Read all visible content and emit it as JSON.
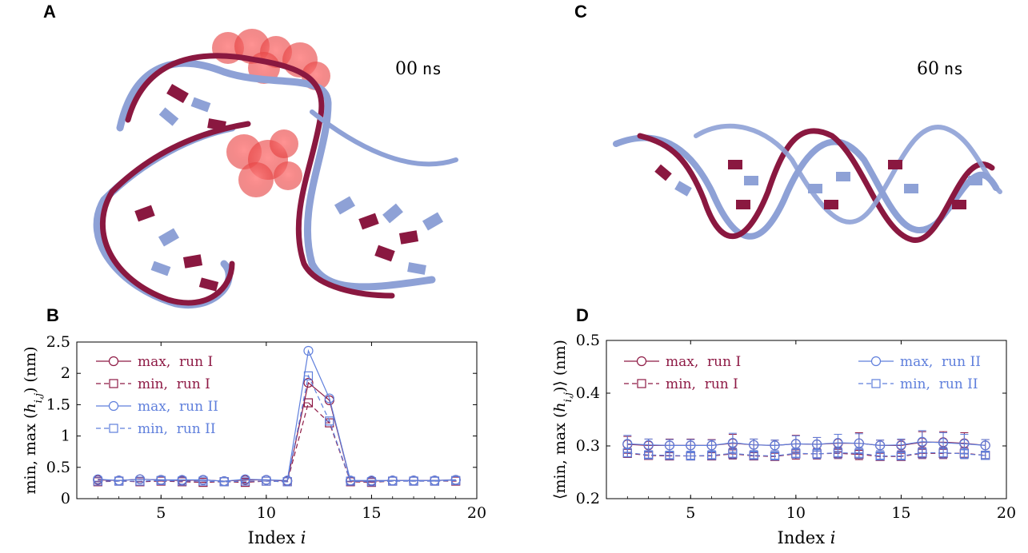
{
  "panels": {
    "a": "A",
    "b": "B",
    "c": "C",
    "d": "D"
  },
  "snapshots": {
    "left_time": "00",
    "right_time": "60",
    "unit": "ns"
  },
  "colors": {
    "run1": "#8e1a45",
    "run2": "#5f7fdc",
    "strand_red": "#8a1840",
    "strand_blue": "#8ea1d6",
    "ligand": "#ff4a4a"
  },
  "chart_data": [
    {
      "type": "line",
      "panel": "B",
      "xlabel": "Index",
      "xlabel_var": "i",
      "ylabel": "min, max (h_{i,j}) (nm)",
      "xlim": [
        1,
        20
      ],
      "ylim": [
        0,
        2.5
      ],
      "xticks": [
        "5",
        "10",
        "15",
        "20"
      ],
      "yticks": [
        "0",
        "0.5",
        "1",
        "1.5",
        "2",
        "2.5"
      ],
      "legend_position": "top-left",
      "x": [
        2,
        3,
        4,
        5,
        6,
        7,
        8,
        9,
        10,
        11,
        12,
        13,
        14,
        15,
        16,
        17,
        18,
        19
      ],
      "series": [
        {
          "name": "max,  run I",
          "style": "solid",
          "marker": "circle",
          "color": "#8e1a45",
          "values": [
            0.3,
            0.29,
            0.31,
            0.3,
            0.29,
            0.3,
            0.28,
            0.3,
            0.3,
            0.28,
            1.85,
            1.57,
            0.28,
            0.28,
            0.29,
            0.29,
            0.29,
            0.3
          ]
        },
        {
          "name": "min,  run I",
          "style": "dashed",
          "marker": "square",
          "color": "#8e1a45",
          "values": [
            0.27,
            0.28,
            0.27,
            0.28,
            0.27,
            0.26,
            0.27,
            0.26,
            0.28,
            0.27,
            1.53,
            1.21,
            0.27,
            0.26,
            0.28,
            0.28,
            0.28,
            0.28
          ]
        },
        {
          "name": "max,  run II",
          "style": "solid",
          "marker": "circle",
          "color": "#5f7fdc",
          "values": [
            0.31,
            0.29,
            0.31,
            0.3,
            0.3,
            0.3,
            0.28,
            0.31,
            0.3,
            0.29,
            2.36,
            1.6,
            0.29,
            0.29,
            0.29,
            0.29,
            0.29,
            0.3
          ]
        },
        {
          "name": "min,  run II",
          "style": "dashed",
          "marker": "square",
          "color": "#5f7fdc",
          "values": [
            0.28,
            0.28,
            0.28,
            0.29,
            0.28,
            0.28,
            0.27,
            0.28,
            0.28,
            0.27,
            1.96,
            1.24,
            0.28,
            0.27,
            0.28,
            0.28,
            0.28,
            0.29
          ]
        }
      ]
    },
    {
      "type": "line",
      "panel": "D",
      "xlabel": "Index",
      "xlabel_var": "i",
      "ylabel": "⟨min, max (h_{i,j})⟩ (nm)",
      "xlim": [
        1,
        20
      ],
      "ylim": [
        0.2,
        0.5
      ],
      "xticks": [
        "5",
        "10",
        "15",
        "20"
      ],
      "yticks": [
        "0.2",
        "0.3",
        "0.4",
        "0.5"
      ],
      "legend_position": "top",
      "x": [
        2,
        3,
        4,
        5,
        6,
        7,
        8,
        9,
        10,
        11,
        12,
        13,
        14,
        15,
        16,
        17,
        18,
        19
      ],
      "series": [
        {
          "name": "max,  run I",
          "style": "solid",
          "marker": "circle",
          "color": "#8e1a45",
          "values": [
            0.303,
            0.301,
            0.301,
            0.301,
            0.301,
            0.305,
            0.302,
            0.301,
            0.304,
            0.303,
            0.305,
            0.305,
            0.301,
            0.301,
            0.307,
            0.307,
            0.305,
            0.301
          ],
          "errors": [
            0.015,
            0.012,
            0.012,
            0.012,
            0.011,
            0.017,
            0.011,
            0.01,
            0.016,
            0.013,
            0.017,
            0.02,
            0.01,
            0.011,
            0.02,
            0.02,
            0.02,
            0.011
          ]
        },
        {
          "name": "min,  run I",
          "style": "dashed",
          "marker": "square",
          "color": "#8e1a45",
          "values": [
            0.286,
            0.282,
            0.281,
            0.281,
            0.281,
            0.285,
            0.281,
            0.28,
            0.285,
            0.285,
            0.286,
            0.284,
            0.28,
            0.28,
            0.286,
            0.286,
            0.286,
            0.282
          ],
          "errors": [
            0.008,
            0.006,
            0.006,
            0.006,
            0.006,
            0.01,
            0.006,
            0.006,
            0.01,
            0.01,
            0.01,
            0.01,
            0.006,
            0.006,
            0.01,
            0.01,
            0.01,
            0.006
          ]
        },
        {
          "name": "max,  run II",
          "style": "solid",
          "marker": "circle",
          "color": "#5f7fdc",
          "values": [
            0.304,
            0.302,
            0.301,
            0.301,
            0.301,
            0.306,
            0.302,
            0.301,
            0.304,
            0.303,
            0.306,
            0.305,
            0.301,
            0.302,
            0.308,
            0.306,
            0.304,
            0.301
          ],
          "errors": [
            0.016,
            0.011,
            0.011,
            0.011,
            0.01,
            0.018,
            0.011,
            0.01,
            0.015,
            0.013,
            0.016,
            0.018,
            0.01,
            0.011,
            0.021,
            0.019,
            0.018,
            0.011
          ]
        },
        {
          "name": "min,  run II",
          "style": "dashed",
          "marker": "square",
          "color": "#5f7fdc",
          "values": [
            0.287,
            0.283,
            0.282,
            0.281,
            0.282,
            0.286,
            0.282,
            0.281,
            0.286,
            0.285,
            0.287,
            0.286,
            0.281,
            0.281,
            0.287,
            0.287,
            0.285,
            0.282
          ],
          "errors": [
            0.008,
            0.006,
            0.006,
            0.006,
            0.006,
            0.01,
            0.006,
            0.006,
            0.009,
            0.009,
            0.01,
            0.01,
            0.006,
            0.006,
            0.01,
            0.01,
            0.009,
            0.006
          ]
        }
      ]
    }
  ]
}
